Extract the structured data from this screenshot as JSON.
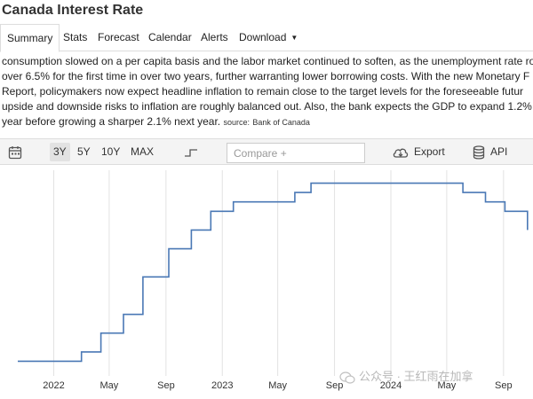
{
  "page": {
    "title": "Canada Interest Rate"
  },
  "tabs": [
    {
      "label": "Summary",
      "active": true
    },
    {
      "label": "Stats"
    },
    {
      "label": "Forecast"
    },
    {
      "label": "Calendar"
    },
    {
      "label": "Alerts"
    },
    {
      "label": "Download",
      "has_dropdown": true
    }
  ],
  "description": {
    "lines": [
      "consumption slowed on a per capita basis and the labor market continued to soften, as the unemployment rate ro",
      "over 6.5% for the first time in over two years, further warranting lower borrowing costs. With the new Monetary F",
      "Report, policymakers now expect headline inflation to remain close to the target levels for the foreseeable futur",
      "upside and downside risks to inflation are roughly balanced out. Also, the bank expects the GDP to expand 1.2%",
      "year before growing a sharper 2.1% next year."
    ],
    "source_label": "source:",
    "source_name": "Bank of Canada"
  },
  "toolbar": {
    "ranges": [
      {
        "label": "3Y",
        "active": true
      },
      {
        "label": "5Y"
      },
      {
        "label": "10Y"
      },
      {
        "label": "MAX"
      }
    ],
    "compare_placeholder": "Compare +",
    "export_label": "Export",
    "api_label": "API",
    "icons": [
      "calendar-icon",
      "step-chart-icon",
      "cloud-download-icon",
      "database-icon"
    ]
  },
  "watermark": {
    "text": "公众号 · 王红雨在加拿"
  },
  "colors": {
    "line": "#4a78b5",
    "grid": "#e2e2e2"
  },
  "chart_data": {
    "type": "line",
    "step": true,
    "ylabel": "",
    "ylim": [
      0,
      5.25
    ],
    "x_tick_labels": [
      "2022",
      "May",
      "Sep",
      "2023",
      "May",
      "Sep",
      "2024",
      "May",
      "Sep"
    ],
    "x_tick_dates": [
      "2022-01-01",
      "2022-05-01",
      "2022-09-01",
      "2023-01-01",
      "2023-05-01",
      "2023-09-01",
      "2024-01-01",
      "2024-05-01",
      "2024-09-01"
    ],
    "x_range": [
      "2021-10-15",
      "2024-10-31"
    ],
    "series": [
      {
        "x": [
          "2021-10-15",
          "2022-03-02",
          "2022-04-13",
          "2022-06-01",
          "2022-07-13",
          "2022-09-07",
          "2022-10-26",
          "2022-12-07",
          "2023-01-25",
          "2023-06-07",
          "2023-07-12",
          "2024-06-05",
          "2024-07-24",
          "2024-09-04",
          "2024-10-23"
        ],
        "y": [
          0.25,
          0.5,
          1.0,
          1.5,
          2.5,
          3.25,
          3.75,
          4.25,
          4.5,
          4.75,
          5.0,
          4.75,
          4.5,
          4.25,
          3.75
        ]
      }
    ]
  }
}
